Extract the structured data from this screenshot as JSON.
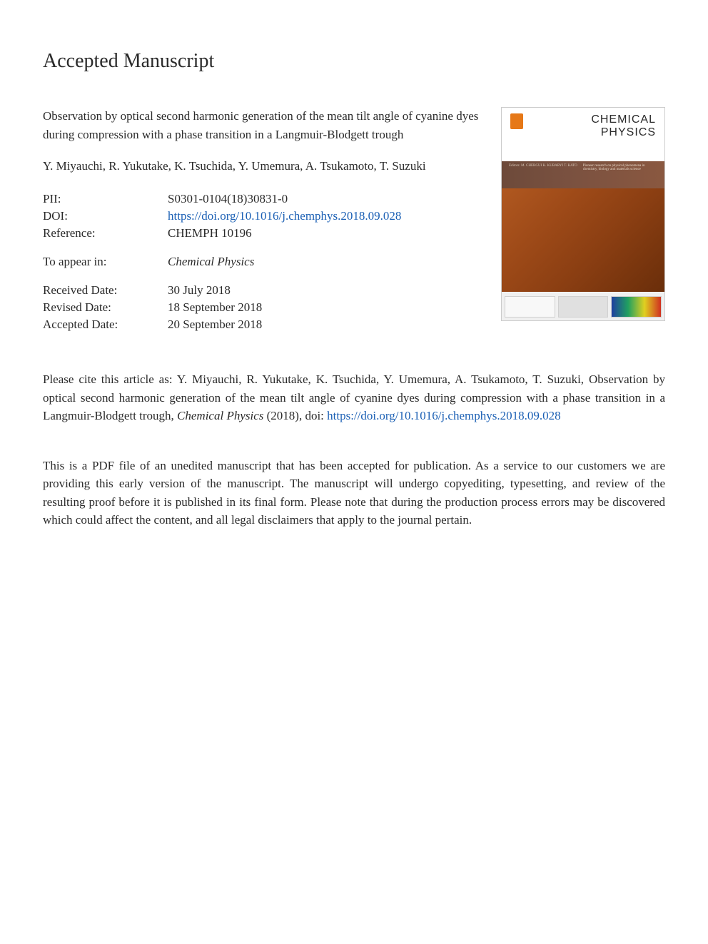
{
  "header": "Accepted Manuscript",
  "article": {
    "title": "Observation by optical second harmonic generation of the mean tilt angle of cyanine dyes during compression with a phase transition in a Langmuir-Blodgett trough",
    "authors": "Y. Miyauchi, R. Yukutake, K. Tsuchida, Y. Umemura, A. Tsukamoto, T. Suzuki"
  },
  "meta": {
    "pii_label": "PII:",
    "pii_value": "S0301-0104(18)30831-0",
    "doi_label": "DOI:",
    "doi_value": "https://doi.org/10.1016/j.chemphys.2018.09.028",
    "ref_label": "Reference:",
    "ref_value": "CHEMPH 10196",
    "appear_label": "To appear in:",
    "appear_value": "Chemical Physics",
    "received_label": "Received Date:",
    "received_value": "30 July 2018",
    "revised_label": "Revised Date:",
    "revised_value": "18 September 2018",
    "accepted_label": "Accepted Date:",
    "accepted_value": "20 September 2018"
  },
  "citation": {
    "prefix": "Please cite this article as: Y. Miyauchi, R. Yukutake, K. Tsuchida, Y. Umemura, A. Tsukamoto, T. Suzuki, Observation by optical second harmonic generation of the mean tilt angle of cyanine dyes during compression with a phase transition in a Langmuir-Blodgett trough, ",
    "journal": "Chemical Physics",
    "year": " (2018), doi: ",
    "link": "https://doi.org/10.1016/j.chemphys.2018.09.028"
  },
  "disclaimer": "This is a PDF file of an unedited manuscript that has been accepted for publication. As a service to our customers we are providing this early version of the manuscript. The manuscript will undergo copyediting, typesetting, and review of the resulting proof before it is published in its final form. Please note that during the production process errors may be discovered which could affect the content, and all legal disclaimers that apply to the journal pertain.",
  "cover": {
    "journal_line1": "CHEMICAL",
    "journal_line2": "PHYSICS",
    "band_left": "Editors:\nM. CHERGUI\nK. KUBARYI\nT. KATO",
    "band_right": "Pioneer research on physical phenomena in chemistry, biology and materials science"
  },
  "colors": {
    "text": "#2a2a2a",
    "link": "#1a5fb4",
    "cover_orange_top": "#e67817",
    "cover_brown": "#7a5140",
    "cover_main_start": "#b05820",
    "cover_main_end": "#6a2e0a",
    "background": "#ffffff"
  },
  "fonts": {
    "body_family": "Georgia, Times New Roman, serif",
    "header_size_pt": 21,
    "body_size_pt": 13,
    "cover_title_family": "Arial, sans-serif"
  }
}
